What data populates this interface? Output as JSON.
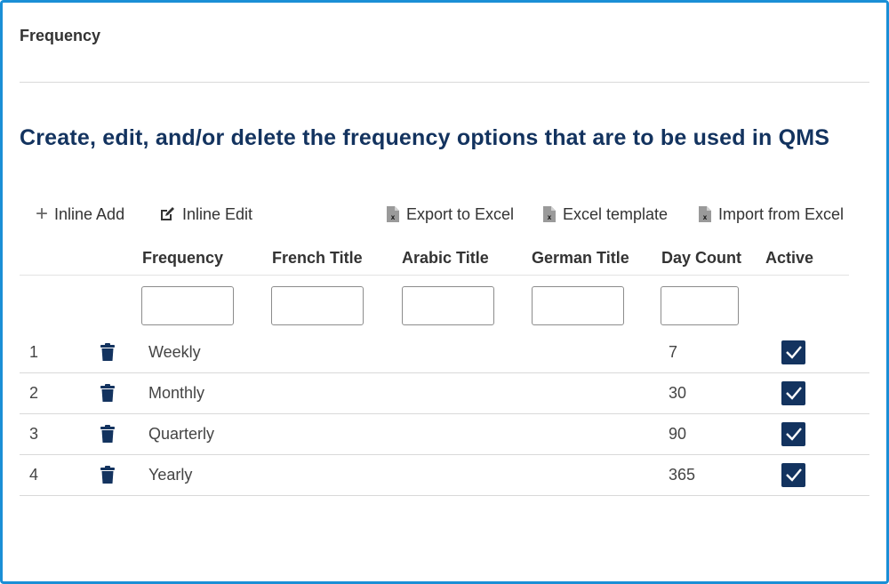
{
  "page": {
    "title": "Frequency",
    "headline": "Create, edit, and/or delete the frequency options that are to be used in QMS"
  },
  "toolbar": {
    "inline_add": "Inline Add",
    "inline_edit": "Inline Edit",
    "export_excel": "Export to Excel",
    "excel_template": "Excel template",
    "import_excel": "Import from Excel"
  },
  "table": {
    "columns": [
      "Frequency",
      "French Title",
      "Arabic Title",
      "German Title",
      "Day Count",
      "Active"
    ],
    "rows": [
      {
        "index": "1",
        "frequency": "Weekly",
        "french": "",
        "arabic": "",
        "german": "",
        "day_count": "7",
        "active": true
      },
      {
        "index": "2",
        "frequency": "Monthly",
        "french": "",
        "arabic": "",
        "german": "",
        "day_count": "30",
        "active": true
      },
      {
        "index": "3",
        "frequency": "Quarterly",
        "french": "",
        "arabic": "",
        "german": "",
        "day_count": "90",
        "active": true
      },
      {
        "index": "4",
        "frequency": "Yearly",
        "french": "",
        "arabic": "",
        "german": "",
        "day_count": "365",
        "active": true
      }
    ]
  },
  "filters": {
    "frequency": "",
    "french": "",
    "arabic": "",
    "german": "",
    "day_count": ""
  },
  "icons": {
    "add": "plus-icon",
    "edit": "pencil-square-icon",
    "excel": "excel-file-icon",
    "delete": "trash-icon",
    "active": "checkbox-checked-icon"
  },
  "colors": {
    "frame_border": "#1a8fd6",
    "headline": "#13335f",
    "checkbox": "#13335f"
  }
}
